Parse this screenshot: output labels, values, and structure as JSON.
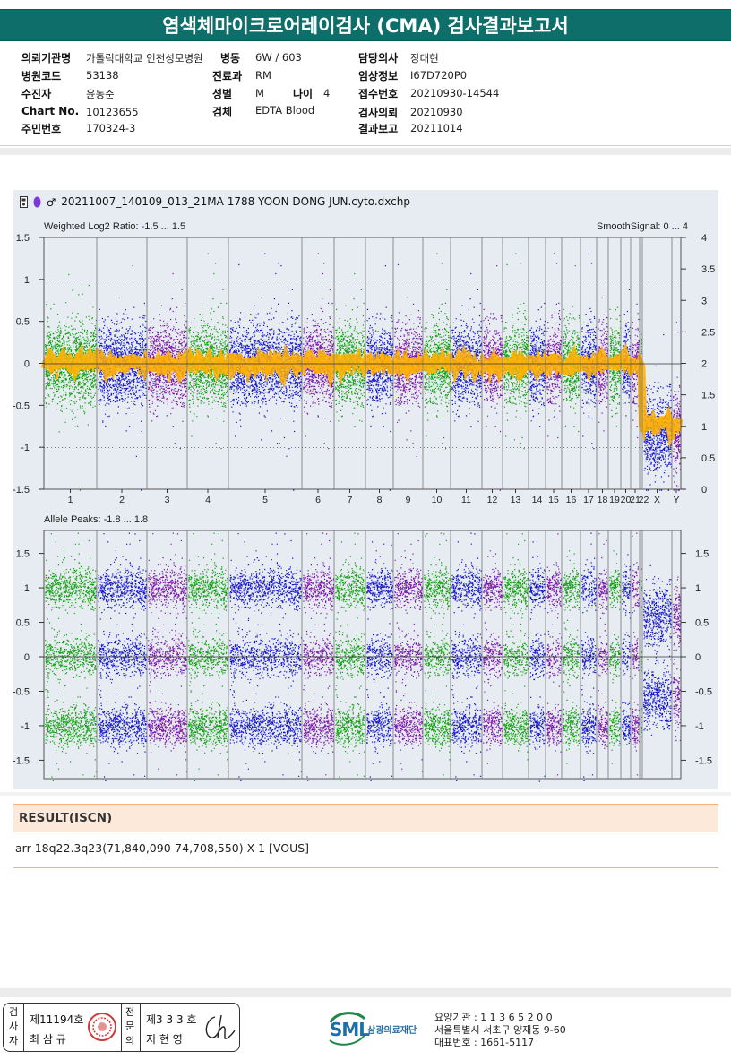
{
  "report_title": "염색체마이크로어레이검사 (CMA) 검사결과보고서",
  "patient_info": {
    "institution_label": "의뢰기관명",
    "institution_value": "가톨릭대학교 인천성모병원",
    "ward_label": "병동",
    "ward_value": "6W / 603",
    "physician_label": "담당의사",
    "physician_value": "장대현",
    "hospital_code_label": "병원코드",
    "hospital_code_value": "53138",
    "department_label": "진료과",
    "department_value": "RM",
    "clinical_label": "임상정보",
    "clinical_value": "I67D720P0",
    "examinee_label": "수진자",
    "examinee_value": "윤동준",
    "sex_label": "성별",
    "sex_value": "M",
    "age_label": "나이",
    "age_value": "4",
    "receipt_no_label": "접수번호",
    "receipt_no_value": "20210930-14544",
    "chart_no_label": "Chart No.",
    "chart_no_value": "10123655",
    "specimen_label": "검체",
    "specimen_value": "EDTA Blood",
    "test_request_label": "검사의뢰",
    "test_request_value": "20210930",
    "resident_no_label": "주민번호",
    "resident_no_value": "170324-3",
    "report_date_label": "결과보고",
    "report_date_value": "20211014"
  },
  "plot": {
    "file_name": "20211007_140109_013_21MA 1788 YOON DONG JUN.cyto.dxchp",
    "top_title_left": "Weighted Log2 Ratio: -1.5 ... 1.5",
    "top_title_right": "SmoothSignal: 0 ... 4",
    "top_left_ticks": [
      "1.5",
      "1",
      "0.5",
      "0",
      "-0.5",
      "-1",
      "-1.5"
    ],
    "top_right_ticks": [
      "4",
      "3.5",
      "3",
      "2.5",
      "2",
      "1.5",
      "1",
      "0.5",
      "0"
    ],
    "chromosome_labels": [
      "1",
      "2",
      "3",
      "4",
      "5",
      "6",
      "7",
      "8",
      "9",
      "10",
      "11",
      "12",
      "13",
      "14",
      "15",
      "16",
      "17",
      "18",
      "19",
      "20",
      "21",
      "22",
      "X",
      "Y"
    ],
    "bottom_title": "Allele Peaks: -1.8 ... 1.8",
    "bottom_left_ticks": [
      "1.5",
      "1",
      "0.5",
      "0",
      "-0.5",
      "-1",
      "-1.5"
    ],
    "bottom_right_ticks": [
      "1.5",
      "1",
      "0.5",
      "0",
      "-0.5",
      "-1",
      "-1.5"
    ],
    "colors": {
      "green": "#12a012",
      "blue": "#1414c8",
      "purple": "#7a14a8",
      "smooth": "#ffb000",
      "panel": "#e6ecf1"
    }
  },
  "result": {
    "heading": "RESULT(ISCN)",
    "text": "arr 18q22.3q23(71,840,090-74,708,550) X 1 [VOUS]"
  },
  "signatures": {
    "inspector_label": "검사자",
    "inspector_no": "제11194호",
    "inspector_name": "최 삼 규",
    "reviewer_label": "전문의",
    "reviewer_no": "제3 3 3 호",
    "reviewer_name": "지 현 영"
  },
  "footer": {
    "logo_text": "SML",
    "foundation_name": "삼광의료재단",
    "care_institution": "요양기관 : 1 1 3 6 5 2 0 0",
    "address": "서울특별시 서초구 양재동 9-60",
    "phone": "대표번호 : 1661-5117"
  }
}
